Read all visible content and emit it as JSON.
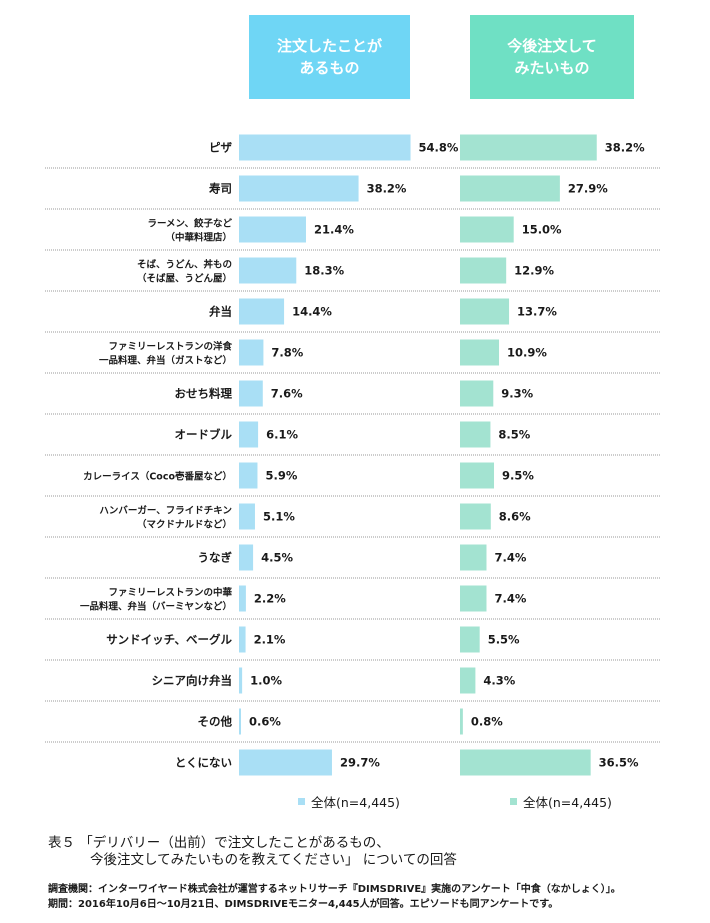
{
  "headers": {
    "left": [
      "注文したことが",
      "あるもの"
    ],
    "right": [
      "今後注文して",
      "みたいもの"
    ]
  },
  "colors": {
    "left_bar": "#a9dff5",
    "right_bar": "#a3e3d1",
    "left_header": "#6fd6f5",
    "right_header": "#6fe0c4"
  },
  "chart_data": {
    "type": "bar",
    "orientation": "horizontal",
    "categories": [
      [
        "ピザ"
      ],
      [
        "寿司"
      ],
      [
        "ラーメン、餃子など",
        "（中華料理店）"
      ],
      [
        "そば、うどん、丼もの",
        "（そば屋、うどん屋）"
      ],
      [
        "弁当"
      ],
      [
        "ファミリーレストランの洋食",
        "一品料理、弁当（ガストなど）"
      ],
      [
        "おせち料理"
      ],
      [
        "オードブル"
      ],
      [
        "カレーライス（Coco壱番屋など）"
      ],
      [
        "ハンバーガー、フライドチキン",
        "（マクドナルドなど）"
      ],
      [
        "うなぎ"
      ],
      [
        "ファミリーレストランの中華",
        "一品料理、弁当（バーミヤンなど）"
      ],
      [
        "サンドイッチ、ベーグル"
      ],
      [
        "シニア向け弁当"
      ],
      [
        "その他"
      ],
      [
        "とくにない"
      ]
    ],
    "series": [
      {
        "name": "全体(n=4,445)",
        "panel": "注文したことがあるもの",
        "values": [
          54.8,
          38.2,
          21.4,
          18.3,
          14.4,
          7.8,
          7.6,
          6.1,
          5.9,
          5.1,
          4.5,
          2.2,
          2.1,
          1.0,
          0.6,
          29.7
        ],
        "labels": [
          "54.8%",
          "38.2%",
          "21.4%",
          "18.3%",
          "14.4%",
          "7.8%",
          "7.6%",
          "6.1%",
          "5.9%",
          "5.1%",
          "4.5%",
          "2.2%",
          "2.1%",
          "1.0%",
          "0.6%",
          "29.7%"
        ]
      },
      {
        "name": "全体(n=4,445)",
        "panel": "今後注文してみたいもの",
        "values": [
          38.2,
          27.9,
          15.0,
          12.9,
          13.7,
          10.9,
          9.3,
          8.5,
          9.5,
          8.6,
          7.4,
          7.4,
          5.5,
          4.3,
          0.8,
          36.5
        ],
        "labels": [
          "38.2%",
          "27.9%",
          "15.0%",
          "12.9%",
          "13.7%",
          "10.9%",
          "9.3%",
          "8.5%",
          "9.5%",
          "8.6%",
          "7.4%",
          "7.4%",
          "5.5%",
          "4.3%",
          "0.8%",
          "36.5%"
        ]
      }
    ]
  },
  "legend": {
    "left": "全体(n=4,445)",
    "right": "全体(n=4,445)"
  },
  "caption": {
    "line1": "表５ 「デリバリー（出前）で注文したことがあるもの、",
    "line2": "今後注文してみたいものを教えてください」 についての回答"
  },
  "note": {
    "line1": "調査機関：インターワイヤード株式会社が運営するネットリサーチ『DIMSDRIVE』実施のアンケート「中食（なかしょく）」。",
    "line2": "期間：2016年10月6日〜10月21日、DIMSDRIVEモニター4,445人が回答。エピソードも同アンケートです。"
  }
}
